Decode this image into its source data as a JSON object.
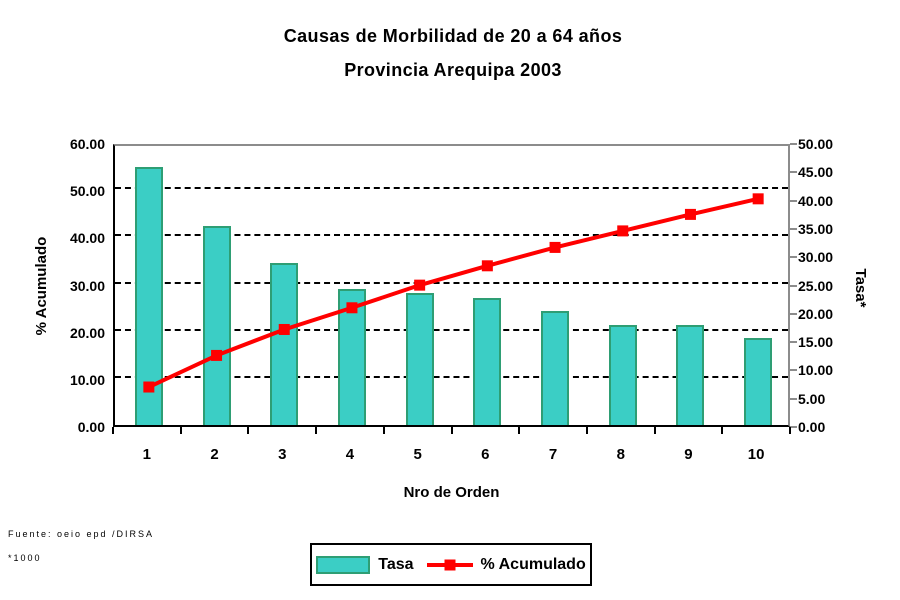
{
  "title": {
    "line1": "Causas de Morbilidad de 20 a 64 años",
    "line2": "Provincia Arequipa 2003"
  },
  "legend": {
    "items": [
      {
        "label": "Tasa",
        "series": "bar"
      },
      {
        "label": "% Acumulado",
        "series": "line"
      }
    ]
  },
  "footer": {
    "source": "Fuente: oeio epd /DIRSA",
    "note": "*1000"
  },
  "chart_data": {
    "type": "bar",
    "subtype": "pareto (bar + cumulative line)",
    "title": "Causas de Morbilidad de 20 a 64 años — Provincia Arequipa 2003",
    "categories": [
      "1",
      "2",
      "3",
      "4",
      "5",
      "6",
      "7",
      "8",
      "9",
      "10"
    ],
    "series": [
      {
        "name": "Tasa",
        "type": "bar",
        "axis": "right",
        "values": [
          45.5,
          35.1,
          28.7,
          24.1,
          23.4,
          22.4,
          20.2,
          17.7,
          17.6,
          15.4
        ]
      },
      {
        "name": "% Acumulado",
        "type": "line",
        "axis": "left",
        "values": [
          8.9,
          15.6,
          21.1,
          25.7,
          30.5,
          34.6,
          38.5,
          42.0,
          45.5,
          48.8
        ]
      }
    ],
    "xlabel": "Nro de Orden",
    "left_axis": {
      "label": "% Acumulado",
      "min": 0,
      "max": 60,
      "step": 10,
      "tick_format": "0.00"
    },
    "right_axis": {
      "label": "Tasa*",
      "min": 0,
      "max": 50,
      "step": 5,
      "tick_format": "0.00"
    },
    "grid": {
      "horizontal": true,
      "style": "dashed",
      "color": "#000000"
    },
    "legend_position": "bottom",
    "colors": {
      "bar_fill": "#3BCEC5",
      "bar_border": "#2E9E74",
      "line": "#FF0000",
      "plot_border": "#8C8C8C",
      "axis": "#000000",
      "text": "#000000",
      "background": "#FFFFFF"
    }
  }
}
